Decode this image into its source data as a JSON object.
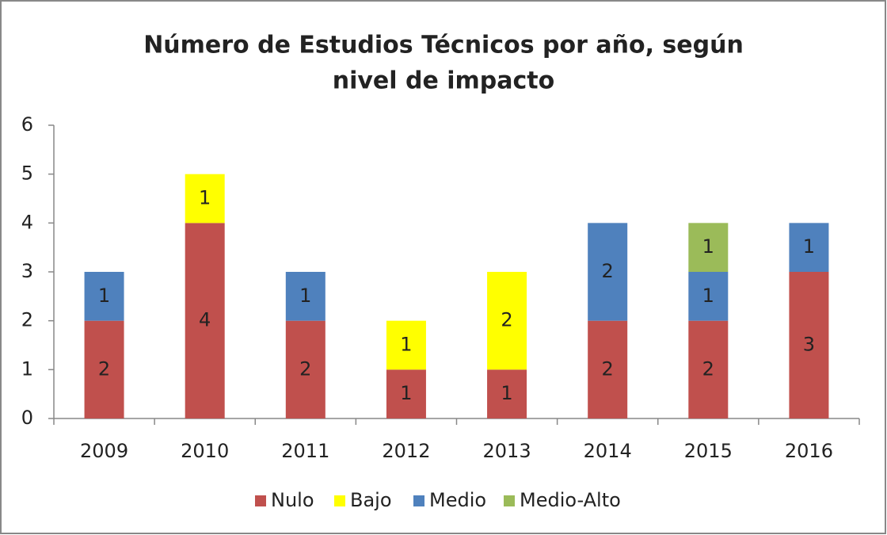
{
  "chart_data": {
    "type": "stacked_bar",
    "title": [
      "Número de Estudios Técnicos por año, según",
      "nivel de impacto"
    ],
    "categories": [
      "2009",
      "2010",
      "2011",
      "2012",
      "2013",
      "2014",
      "2015",
      "2016"
    ],
    "series": [
      {
        "name": "Nulo",
        "color": "#c0504d",
        "values": [
          2,
          4,
          2,
          1,
          1,
          2,
          2,
          3
        ]
      },
      {
        "name": "Bajo",
        "color": "#ffff00",
        "values": [
          null,
          1,
          null,
          1,
          2,
          null,
          null,
          null
        ]
      },
      {
        "name": "Medio",
        "color": "#4f81bd",
        "values": [
          1,
          null,
          1,
          null,
          null,
          2,
          1,
          1
        ]
      },
      {
        "name": "Medio-Alto",
        "color": "#9bbb59",
        "values": [
          null,
          null,
          null,
          null,
          null,
          null,
          1,
          null
        ]
      }
    ],
    "ylim": [
      0,
      6
    ],
    "yticks": [
      0,
      1,
      2,
      3,
      4,
      5,
      6
    ],
    "grid": false,
    "legend": "bottom"
  }
}
